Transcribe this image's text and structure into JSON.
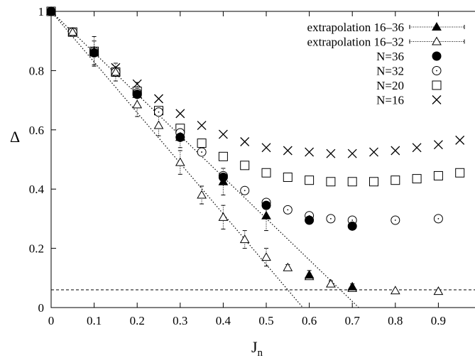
{
  "chart_data": {
    "type": "scatter",
    "xlabel": "J",
    "xlabel_sub": "n",
    "ylabel": "Δ",
    "xlim": [
      0,
      1
    ],
    "ylim": [
      0,
      1
    ],
    "x_ticks": [
      "0",
      "0.1",
      "0.2",
      "0.3",
      "0.4",
      "0.5",
      "0.6",
      "0.7",
      "0.8",
      "0.9",
      "1"
    ],
    "y_ticks": [
      "0",
      "0.2",
      "0.4",
      "0.6",
      "0.8",
      "1"
    ],
    "x_tick_values": [
      0,
      0.1,
      0.2,
      0.3,
      0.4,
      0.5,
      0.6,
      0.7,
      0.8,
      0.9,
      1
    ],
    "y_tick_values": [
      0,
      0.2,
      0.4,
      0.6,
      0.8,
      1
    ],
    "grid": false,
    "legend_position": "top-right",
    "series": [
      {
        "name": "extrapolation 16–36",
        "marker": "filled-triangle",
        "errorbars": true,
        "x": [
          0,
          0.1,
          0.2,
          0.3,
          0.4,
          0.5,
          0.6,
          0.7,
          1.0
        ],
        "y": [
          1.0,
          0.86,
          0.72,
          0.575,
          0.425,
          0.31,
          0.11,
          0.07,
          0.055
        ],
        "err": [
          0.0,
          0.04,
          0.04,
          0.035,
          0.045,
          0.05,
          0.015,
          0.01,
          0.0
        ]
      },
      {
        "name": "extrapolation 16–32",
        "marker": "open-triangle",
        "errorbars": true,
        "x": [
          0,
          0.05,
          0.1,
          0.15,
          0.2,
          0.25,
          0.3,
          0.35,
          0.4,
          0.45,
          0.5,
          0.55,
          0.6,
          0.65,
          0.7,
          0.8,
          0.9
        ],
        "y": [
          1.0,
          0.93,
          0.865,
          0.795,
          0.685,
          0.615,
          0.49,
          0.38,
          0.305,
          0.23,
          0.17,
          0.135,
          0.105,
          0.08,
          0.065,
          0.057,
          0.055
        ],
        "err": [
          0.0,
          0.0,
          0.05,
          0.03,
          0.04,
          0.035,
          0.04,
          0.03,
          0.04,
          0.03,
          0.03,
          0.01,
          0.01,
          0.01,
          0.0,
          0.0,
          0.0
        ]
      },
      {
        "name": "N=36",
        "marker": "filled-circle",
        "x": [
          0,
          0.1,
          0.2,
          0.3,
          0.4,
          0.5,
          0.6,
          0.7,
          1.0
        ],
        "y": [
          1.0,
          0.86,
          0.72,
          0.575,
          0.44,
          0.345,
          0.295,
          0.275,
          0.29
        ]
      },
      {
        "name": "N=32",
        "marker": "open-circle",
        "x": [
          0,
          0.05,
          0.1,
          0.15,
          0.2,
          0.25,
          0.3,
          0.35,
          0.4,
          0.45,
          0.5,
          0.55,
          0.6,
          0.65,
          0.7,
          0.8,
          0.9,
          1.0
        ],
        "y": [
          1.0,
          0.93,
          0.865,
          0.795,
          0.725,
          0.66,
          0.59,
          0.525,
          0.445,
          0.395,
          0.355,
          0.33,
          0.31,
          0.3,
          0.295,
          0.295,
          0.3,
          0.31
        ]
      },
      {
        "name": "N=20",
        "marker": "open-square",
        "x": [
          0,
          0.05,
          0.1,
          0.15,
          0.2,
          0.25,
          0.3,
          0.35,
          0.4,
          0.45,
          0.5,
          0.55,
          0.6,
          0.65,
          0.7,
          0.75,
          0.8,
          0.85,
          0.9,
          0.95,
          1.0
        ],
        "y": [
          1.0,
          0.93,
          0.865,
          0.795,
          0.73,
          0.665,
          0.605,
          0.555,
          0.51,
          0.48,
          0.455,
          0.44,
          0.43,
          0.425,
          0.425,
          0.425,
          0.43,
          0.435,
          0.445,
          0.455,
          0.465
        ]
      },
      {
        "name": "N=16",
        "marker": "cross",
        "x": [
          0,
          0.05,
          0.1,
          0.15,
          0.2,
          0.25,
          0.3,
          0.35,
          0.4,
          0.45,
          0.5,
          0.55,
          0.6,
          0.65,
          0.7,
          0.75,
          0.8,
          0.85,
          0.9,
          0.95,
          1.0
        ],
        "y": [
          1.0,
          0.93,
          0.865,
          0.81,
          0.755,
          0.705,
          0.655,
          0.615,
          0.585,
          0.56,
          0.54,
          0.53,
          0.525,
          0.52,
          0.52,
          0.525,
          0.53,
          0.54,
          0.55,
          0.565,
          0.58
        ]
      }
    ],
    "fit_lines": [
      {
        "label": "fit-16-36",
        "x": [
          0.0,
          0.715
        ],
        "y": [
          1.0,
          0.0
        ]
      },
      {
        "label": "fit-16-32",
        "x": [
          0.0,
          0.585
        ],
        "y": [
          1.0,
          0.0
        ]
      }
    ],
    "reference_line": {
      "y": 0.06,
      "style": "dashed"
    }
  }
}
